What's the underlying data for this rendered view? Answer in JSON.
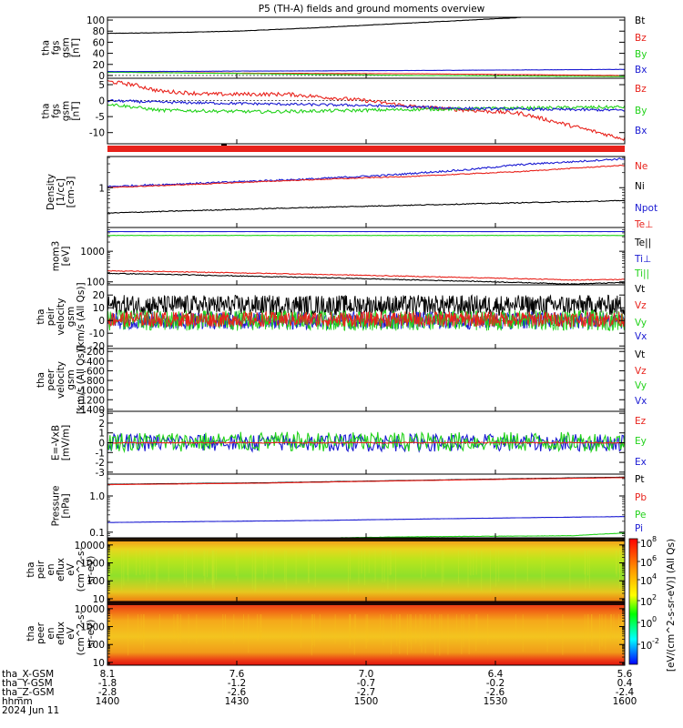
{
  "title": "P5 (TH-A) fields and ground moments overview",
  "colors": {
    "black": "#000000",
    "red": "#e8221b",
    "green": "#22d21a",
    "blue": "#1a1ad2"
  },
  "chart_data": [
    {
      "id": "fgs_gsm_full",
      "type": "line",
      "ylabel": [
        "tha",
        "fgs",
        "gsm",
        "[nT]"
      ],
      "ylim": [
        -5,
        105
      ],
      "yticks": [
        "100",
        "80",
        "60",
        "40",
        "20",
        "0"
      ],
      "yticks_values": [
        100,
        80,
        60,
        40,
        20,
        0
      ],
      "legend": [
        "Bt",
        "Bz",
        "By",
        "Bx"
      ],
      "series": [
        {
          "name": "Bt",
          "color": "black",
          "x": [
            0,
            0.1,
            0.25,
            0.4,
            0.55,
            0.7,
            0.85,
            1.0
          ],
          "y": [
            76,
            77,
            80,
            86,
            93,
            100,
            107,
            115
          ],
          "noise": 0.3
        },
        {
          "name": "Bz",
          "color": "red",
          "x": [
            0,
            0.3,
            0.6,
            1.0
          ],
          "y": [
            6,
            4,
            3,
            0
          ],
          "noise": 0.2
        },
        {
          "name": "By",
          "color": "green",
          "x": [
            0,
            0.3,
            0.6,
            1.0
          ],
          "y": [
            6,
            3,
            0,
            -2
          ],
          "noise": 0.2
        },
        {
          "name": "Bx",
          "color": "blue",
          "x": [
            0,
            0.3,
            0.6,
            1.0
          ],
          "y": [
            7,
            8,
            9,
            11
          ],
          "noise": 0.2
        }
      ]
    },
    {
      "id": "fgs_gsm_zoom",
      "type": "line",
      "ylabel": [
        "tha",
        "fgs",
        "gsm",
        "[nT]"
      ],
      "ylim": [
        -13.5,
        7
      ],
      "yticks": [
        "5",
        "0",
        "-5",
        "-10"
      ],
      "yticks_values": [
        5,
        0,
        -5,
        -10
      ],
      "legend": [
        "Bz",
        "By",
        "Bx"
      ],
      "series": [
        {
          "name": "Bz",
          "color": "red",
          "x": [
            0,
            0.05,
            0.1,
            0.2,
            0.35,
            0.5,
            0.6,
            0.7,
            0.8,
            0.9,
            1.0
          ],
          "y": [
            6,
            5,
            3,
            2,
            2,
            0,
            -2,
            -3,
            -4,
            -8,
            -12
          ],
          "noise": 0.6
        },
        {
          "name": "By",
          "color": "green",
          "x": [
            0,
            0.1,
            0.3,
            0.5,
            0.7,
            1.0
          ],
          "y": [
            -1,
            -3,
            -3.5,
            -3,
            -2.5,
            -2
          ],
          "noise": 0.5
        },
        {
          "name": "Bx",
          "color": "blue",
          "x": [
            0,
            0.1,
            0.3,
            0.5,
            0.7,
            1.0
          ],
          "y": [
            0,
            -0.5,
            -1,
            -1.5,
            -2.5,
            -3
          ],
          "noise": 0.4
        }
      ]
    },
    {
      "id": "density",
      "type": "line",
      "log": true,
      "ylabel": [
        "Density",
        "[1/cc]",
        "[cm-3]"
      ],
      "ylim": [
        0.16,
        4.2
      ],
      "yticks": [
        "1"
      ],
      "yticks_values": [
        1
      ],
      "legend": [
        "Ne",
        "Ni",
        "Npot"
      ],
      "series": [
        {
          "name": "Ne",
          "color": "blue",
          "x": [
            0,
            0.2,
            0.4,
            0.55,
            0.7,
            0.8,
            0.9,
            1.0
          ],
          "y": [
            1.05,
            1.25,
            1.5,
            1.8,
            2.3,
            2.9,
            3.3,
            3.8
          ],
          "noise": 0.04
        },
        {
          "name": "Ni",
          "color": "red",
          "x": [
            0,
            0.2,
            0.4,
            0.6,
            0.8,
            1.0
          ],
          "y": [
            1.0,
            1.2,
            1.45,
            1.7,
            2.1,
            2.8
          ],
          "noise": 0.02
        },
        {
          "name": "Npot",
          "color": "black",
          "x": [
            0,
            0.3,
            0.6,
            1.0
          ],
          "y": [
            0.31,
            0.38,
            0.45,
            0.55
          ],
          "noise": 0.02
        }
      ]
    },
    {
      "id": "temperature",
      "type": "line",
      "log": true,
      "ylabel": [
        "mom3",
        "[eV]"
      ],
      "ylim": [
        80,
        6000
      ],
      "yticks": [
        "1000",
        "100"
      ],
      "yticks_values": [
        1000,
        100
      ],
      "legend": [
        "Te⊥",
        "Te||",
        "Ti⊥",
        "Ti||"
      ],
      "series": [
        {
          "name": "Te⊥",
          "color": "blue",
          "x": [
            0,
            0.5,
            1.0
          ],
          "y": [
            4400,
            4400,
            4400
          ],
          "noise": 0.005
        },
        {
          "name": "Te||",
          "color": "green",
          "x": [
            0,
            0.5,
            1.0
          ],
          "y": [
            3300,
            3300,
            3300
          ],
          "noise": 0.01
        },
        {
          "name": "Ti⊥",
          "color": "red",
          "x": [
            0,
            0.3,
            0.6,
            0.9,
            1.0
          ],
          "y": [
            230,
            190,
            150,
            115,
            120
          ],
          "noise": 0.03
        },
        {
          "name": "Ti||",
          "color": "black",
          "x": [
            0,
            0.3,
            0.6,
            0.9,
            1.0
          ],
          "y": [
            190,
            150,
            115,
            85,
            95
          ],
          "noise": 0.03
        }
      ]
    },
    {
      "id": "peir_velocity",
      "type": "line",
      "ylabel": [
        "tha",
        "peir",
        "velocity",
        "gsm",
        "[km/s (All Qs)]"
      ],
      "ylim": [
        -22,
        28
      ],
      "yticks": [
        "20",
        "10",
        "0",
        "-10",
        "-20"
      ],
      "yticks_values": [
        20,
        10,
        0,
        -10,
        -20
      ],
      "legend": [
        "Vt",
        "Vz",
        "Vy",
        "Vx"
      ],
      "series": [
        {
          "name": "Vt",
          "color": "black",
          "x": [
            0,
            0.5,
            1.0
          ],
          "y": [
            12,
            12,
            12
          ],
          "noise": 8
        },
        {
          "name": "Vx",
          "color": "blue",
          "x": [
            0,
            0.5,
            1.0
          ],
          "y": [
            0,
            0,
            0
          ],
          "noise": 7
        },
        {
          "name": "Vy",
          "color": "green",
          "x": [
            0,
            0.5,
            1.0
          ],
          "y": [
            0,
            0,
            0
          ],
          "noise": 8
        },
        {
          "name": "Vz",
          "color": "red",
          "x": [
            0,
            0.5,
            1.0
          ],
          "y": [
            1,
            1,
            1
          ],
          "noise": 6
        }
      ]
    },
    {
      "id": "peer_velocity",
      "type": "line",
      "ylabel": [
        "tha",
        "peer",
        "velocity",
        "gsm",
        "[km/s (All Qs)]"
      ],
      "ylim": [
        -1440,
        -140
      ],
      "yticks": [
        "-200",
        "-400",
        "-600",
        "-800",
        "-1000",
        "-1200",
        "-1400"
      ],
      "yticks_values": [
        -200,
        -400,
        -600,
        -800,
        -1000,
        -1200,
        -1400
      ],
      "legend": [
        "Vt",
        "Vz",
        "Vy",
        "Vx"
      ],
      "series": []
    },
    {
      "id": "efield",
      "type": "line",
      "ylabel": [
        "E=-VxB",
        "[mV/m]"
      ],
      "ylim": [
        -3.2,
        3.2
      ],
      "yticks": [
        "3",
        "2",
        "1",
        "0",
        "-1",
        "-2",
        "-3"
      ],
      "yticks_values": [
        3,
        2,
        1,
        0,
        -1,
        -2,
        -3
      ],
      "legend": [
        "Ez",
        "Ey",
        "Ex"
      ],
      "series": [
        {
          "name": "Ex",
          "color": "blue",
          "x": [
            0,
            0.5,
            1.0
          ],
          "y": [
            0,
            0,
            0
          ],
          "noise": 0.9
        },
        {
          "name": "Ey",
          "color": "green",
          "x": [
            0,
            0.5,
            1.0
          ],
          "y": [
            0.1,
            0.1,
            0.1
          ],
          "noise": 1.0
        },
        {
          "name": "Ez",
          "color": "red",
          "x": [
            0,
            0.5,
            1.0
          ],
          "y": [
            0,
            0,
            0
          ],
          "noise": 0.05
        }
      ]
    },
    {
      "id": "pressure",
      "type": "line",
      "log": true,
      "ylabel": [
        "Pressure",
        "[nPa]"
      ],
      "ylim": [
        0.07,
        4
      ],
      "yticks": [
        "1.0",
        "0.1"
      ],
      "yticks_values": [
        1,
        0.1
      ],
      "legend": [
        "Pt",
        "Pb",
        "Pe",
        "Pi"
      ],
      "series": [
        {
          "name": "Pt",
          "color": "black",
          "x": [
            0,
            0.3,
            0.6,
            1.0
          ],
          "y": [
            2.1,
            2.3,
            2.7,
            3.3
          ],
          "noise": 0.004
        },
        {
          "name": "Pb",
          "color": "red",
          "x": [
            0,
            0.3,
            0.6,
            1.0
          ],
          "y": [
            2.05,
            2.25,
            2.65,
            3.2
          ],
          "noise": 0.004
        },
        {
          "name": "Pe",
          "color": "blue",
          "x": [
            0,
            0.4,
            0.7,
            1.0
          ],
          "y": [
            0.185,
            0.21,
            0.24,
            0.27
          ],
          "noise": 0.005
        },
        {
          "name": "Pi",
          "color": "green",
          "x": [
            0,
            0.3,
            0.6,
            0.9,
            1.0
          ],
          "y": [
            0.055,
            0.065,
            0.075,
            0.08,
            0.095
          ],
          "noise": 0.01
        }
      ]
    },
    {
      "id": "peir_spectrogram",
      "type": "heatmap",
      "log": true,
      "ylabel": [
        "tha",
        "peir",
        "en",
        "eflux",
        "eV",
        "(cm^2-s-",
        "sr-eV)"
      ],
      "ylim": [
        7,
        25000
      ],
      "yticks": [
        "10000",
        "1000",
        "100",
        "10"
      ],
      "yticks_values": [
        10000,
        1000,
        100,
        10
      ]
    },
    {
      "id": "peer_spectrogram",
      "type": "heatmap",
      "log": true,
      "ylabel": [
        "tha",
        "peer",
        "en",
        "eflux",
        "eV",
        "(cm^2-s-",
        "sr-eV)"
      ],
      "ylim": [
        7,
        25000
      ],
      "yticks": [
        "10000",
        "1000",
        "100",
        "10"
      ],
      "yticks_values": [
        10000,
        1000,
        100,
        10
      ]
    }
  ],
  "colorbar": {
    "tick_labels": [
      "10",
      "10",
      "10",
      "10",
      "10",
      "10"
    ],
    "tick_exponents": [
      "8",
      "6",
      "4",
      "2",
      "0",
      "-2"
    ],
    "label": "[eV/(cm^2-s-sr-eV)] (All Qs)"
  },
  "xaxis": {
    "row_labels": [
      "tha_X-GSM",
      "tha_Y-GSM",
      "tha_Z-GSM",
      "hhmm",
      "2024 Jun 11"
    ],
    "ticks": [
      {
        "values": [
          "8.1",
          "-1.8",
          "-2.8",
          "1400"
        ]
      },
      {
        "values": [
          "7.6",
          "-1.2",
          "-2.6",
          "1430"
        ]
      },
      {
        "values": [
          "7.0",
          "-0.7",
          "-2.7",
          "1500"
        ]
      },
      {
        "values": [
          "6.4",
          "-0.2",
          "-2.6",
          "1530"
        ]
      },
      {
        "values": [
          "5.6",
          "0.4",
          "-2.4",
          "1600"
        ]
      }
    ]
  }
}
